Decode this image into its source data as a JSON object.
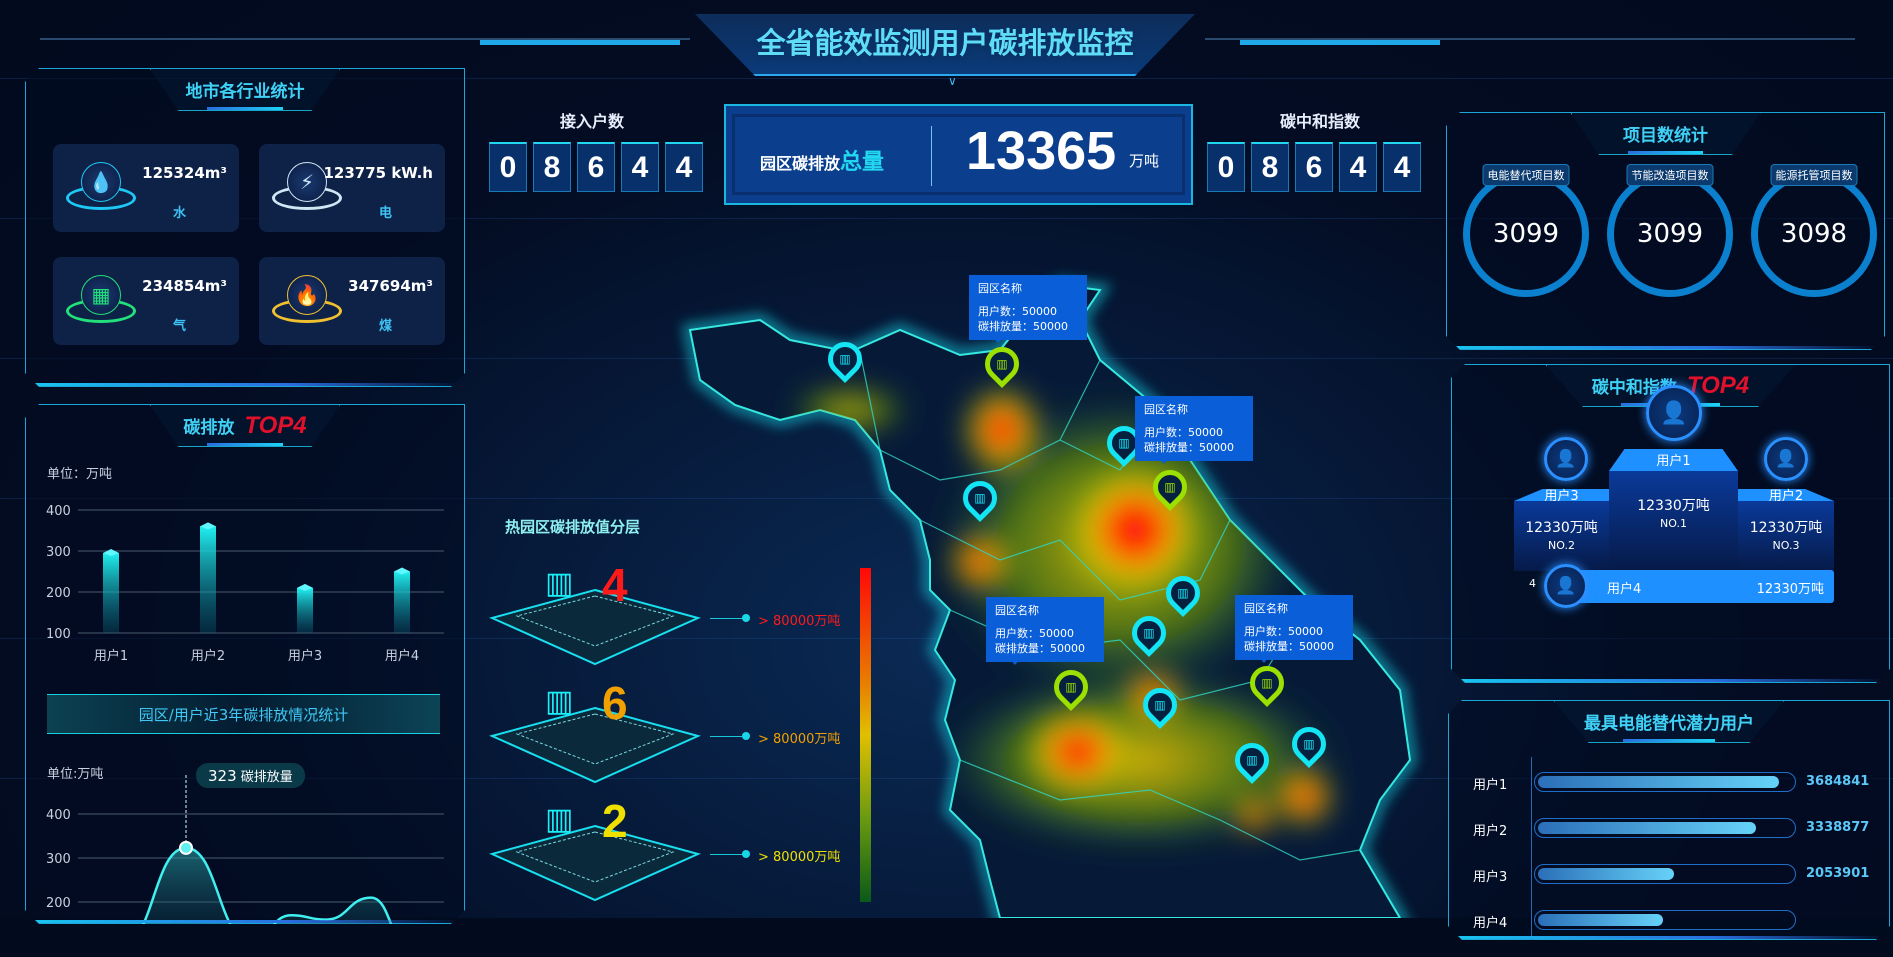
{
  "header": {
    "title": "全省能效监测用户碳排放监控"
  },
  "colors": {
    "accent": "#3fd2f7",
    "red": "#e2112b",
    "orange": "#f2a000",
    "yellow": "#f0e000",
    "bar_blue": "#1e90ff"
  },
  "access": {
    "label": "接入户数",
    "digits": [
      "0",
      "8",
      "6",
      "4",
      "4"
    ]
  },
  "total": {
    "label_prefix": "园区碳排放",
    "label_highlight": "总量",
    "value": "13365",
    "unit": "万吨"
  },
  "neutral": {
    "label": "碳中和指数",
    "digits": [
      "0",
      "8",
      "6",
      "4",
      "4"
    ]
  },
  "industry": {
    "title": "地市各行业统计",
    "items": [
      {
        "value": "125324m³",
        "label": "水",
        "icon": "water-drop-icon",
        "color": "#1ec8f5"
      },
      {
        "value": "123775 kW.h",
        "label": "电",
        "icon": "lightning-icon",
        "color": "#cfe6f5"
      },
      {
        "value": "234854m³",
        "label": "气",
        "icon": "gas-icon",
        "color": "#22e07a"
      },
      {
        "value": "347694m³",
        "label": "煤",
        "icon": "fire-icon",
        "color": "#f0c030"
      }
    ]
  },
  "emission_top4": {
    "title": "碳排放",
    "badge": "TOP4",
    "chart_data": {
      "type": "bar",
      "unit": "单位：万吨",
      "categories": [
        "用户1",
        "用户2",
        "用户3",
        "用户4"
      ],
      "values": [
        295,
        360,
        210,
        250
      ],
      "yticks": [
        100,
        200,
        300,
        400
      ],
      "ylim": [
        100,
        400
      ]
    }
  },
  "trend": {
    "title": "园区/用户近3年碳排放情况统计",
    "chart_data": {
      "type": "area",
      "unit": "单位:万吨",
      "yticks": [
        200,
        300,
        400
      ],
      "values": [
        100,
        323,
        110,
        170,
        160,
        210,
        90
      ],
      "tooltip_value": "323",
      "tooltip_label": "碳排放量",
      "highlight_index": 1
    }
  },
  "layers": {
    "title": "热园区碳排放值分层",
    "items": [
      {
        "count": "4",
        "text": "> 80000万吨",
        "color": "#ff1a1a"
      },
      {
        "count": "6",
        "text": "> 80000万吨",
        "color": "#f2a000"
      },
      {
        "count": "2",
        "text": "> 80000万吨",
        "color": "#f0e000"
      }
    ]
  },
  "map": {
    "tooltips": [
      {
        "name": "园区名称",
        "users": "用户数：50000",
        "emission": "碳排放量：50000"
      },
      {
        "name": "园区名称",
        "users": "用户数：50000",
        "emission": "碳排放量：50000"
      },
      {
        "name": "园区名称",
        "users": "用户数：50000",
        "emission": "碳排放量：50000"
      },
      {
        "name": "园区名称",
        "users": "用户数：50000",
        "emission": "碳排放量：50000"
      }
    ]
  },
  "projects": {
    "title": "项目数统计",
    "items": [
      {
        "label": "电能替代项目数",
        "value": "3099"
      },
      {
        "label": "节能改造项目数",
        "value": "3099"
      },
      {
        "label": "能源托管项目数",
        "value": "3098"
      }
    ]
  },
  "neutral_top4": {
    "title": "碳中和指数",
    "badge": "TOP4",
    "first": {
      "name": "用户1",
      "value": "12330万吨",
      "rank": "NO.1"
    },
    "second": {
      "name": "用户3",
      "value": "12330万吨",
      "rank": "NO.2"
    },
    "third": {
      "name": "用户2",
      "value": "12330万吨",
      "rank": "NO.3"
    },
    "fourth": {
      "rank": "4",
      "name": "用户4",
      "value": "12330万吨"
    }
  },
  "potential": {
    "title": "最具电能替代潜力用户",
    "items": [
      {
        "name": "用户1",
        "value": "3684841",
        "fraction": 0.94
      },
      {
        "name": "用户2",
        "value": "3338877",
        "fraction": 0.85
      },
      {
        "name": "用户3",
        "value": "2053901",
        "fraction": 0.53
      },
      {
        "name": "用户4",
        "fraction": 0.49
      }
    ]
  }
}
